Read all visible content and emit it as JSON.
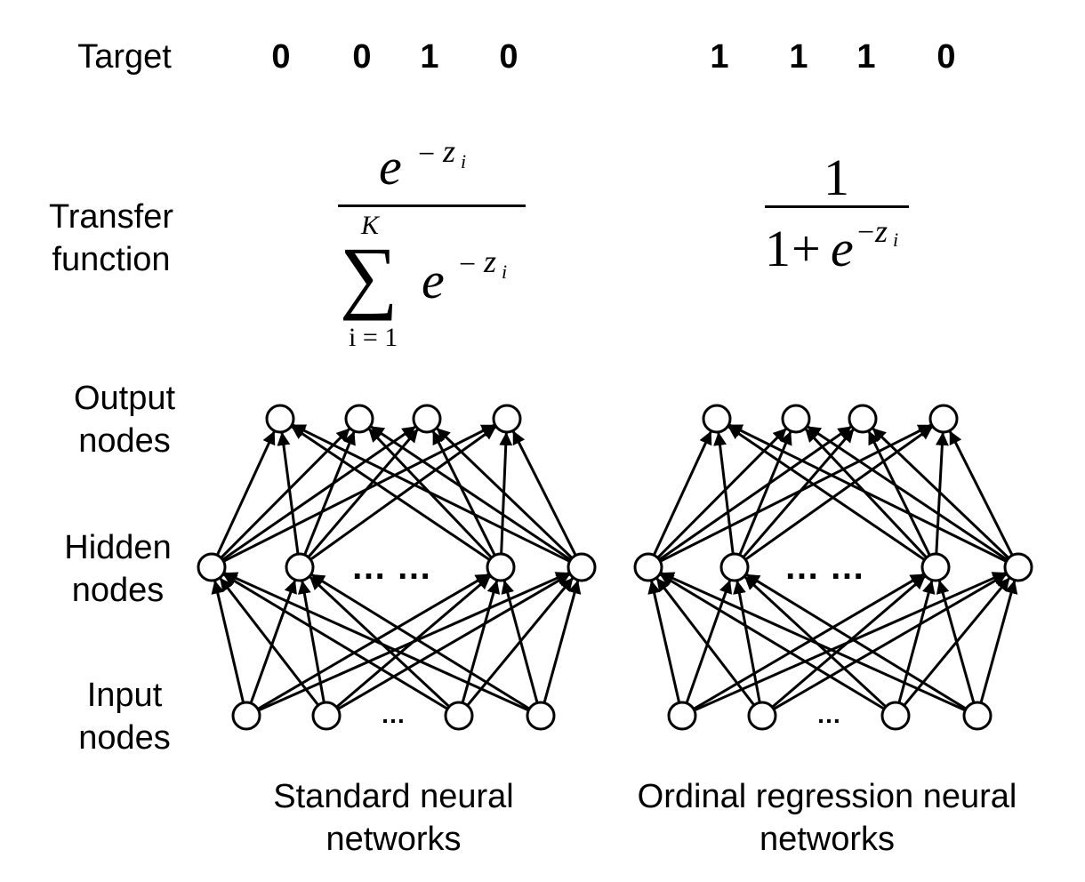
{
  "row_labels": {
    "target": "Target",
    "transfer_line1": "Transfer",
    "transfer_line2": "function",
    "output_line1": "Output",
    "output_line2": "nodes",
    "hidden_line1": "Hidden",
    "hidden_line2": "nodes",
    "input_line1": "Input",
    "input_line2": "nodes"
  },
  "standard": {
    "targets": [
      "0",
      "0",
      "1",
      "0"
    ],
    "caption_line1": "Standard neural",
    "caption_line2": "networks",
    "softmax": {
      "numerator_base": "e",
      "exponent_minus": "−",
      "exponent_var": "z",
      "exponent_sub": "i",
      "sum_symbol": "∑",
      "sum_upper": "K",
      "sum_lower": "i = 1",
      "denominator_base": "e"
    }
  },
  "ordinal": {
    "targets": [
      "1",
      "1",
      "1",
      "0"
    ],
    "caption_line1": "Ordinal regression neural",
    "caption_line2": "networks",
    "sigmoid": {
      "numerator": "1",
      "denominator_one": "1",
      "plus": "+",
      "base": "e",
      "exponent_minus": "−",
      "exponent_var": "z",
      "exponent_sub": "i"
    }
  },
  "ellipsis_hidden": "… …",
  "ellipsis_input": "…",
  "colors": {
    "stroke": "#000000",
    "node_fill": "#ffffff"
  }
}
